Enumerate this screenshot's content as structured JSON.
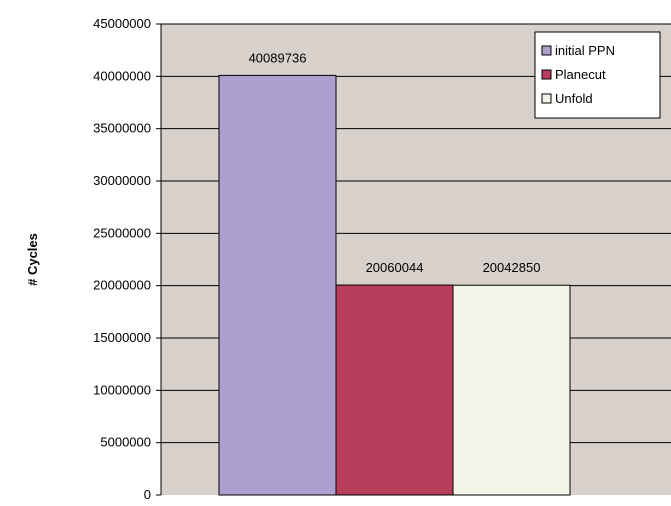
{
  "chart_data": {
    "type": "bar",
    "title": "",
    "xlabel": "",
    "ylabel": "# Cycles",
    "ylim": [
      0,
      45000000
    ],
    "yticks": [
      "0",
      "5000000",
      "10000000",
      "15000000",
      "20000000",
      "25000000",
      "30000000",
      "35000000",
      "40000000",
      "45000000"
    ],
    "grid": true,
    "legend_position": "top-right",
    "series": [
      {
        "name": "initial PPN",
        "value": 40089736,
        "label": "40089736",
        "color": "#ada0cf"
      },
      {
        "name": "Planecut",
        "value": 20060044,
        "label": "20060044",
        "color": "#b83d5b"
      },
      {
        "name": "Unfold",
        "value": 20042850,
        "label": "20042850",
        "color": "#f1f6e8"
      }
    ],
    "colors": {
      "plot_background": "#d8d0cb",
      "gridline": "#000000",
      "bar_outline": "#000000"
    }
  }
}
